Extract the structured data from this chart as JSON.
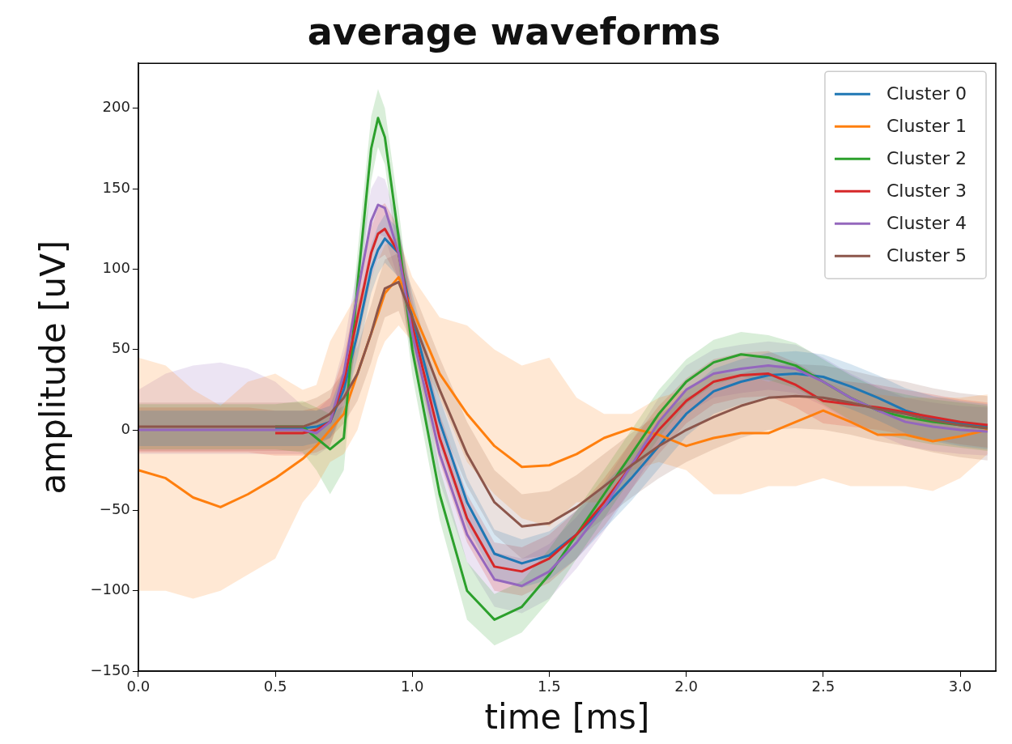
{
  "chart_data": {
    "type": "line",
    "title": "average waveforms",
    "xlabel": "time [ms]",
    "ylabel": "amplitude [uV]",
    "x": [
      0,
      0.1,
      0.2,
      0.3,
      0.4,
      0.5,
      0.6,
      0.65,
      0.7,
      0.75,
      0.8,
      0.85,
      0.875,
      0.9,
      0.95,
      1.0,
      1.1,
      1.2,
      1.3,
      1.4,
      1.5,
      1.6,
      1.7,
      1.8,
      1.9,
      2.0,
      2.1,
      2.2,
      2.3,
      2.4,
      2.5,
      2.6,
      2.7,
      2.8,
      2.9,
      3.0,
      3.1
    ],
    "xlim": [
      0,
      3.13
    ],
    "xticks": [
      {
        "value": 0,
        "label": "0.0"
      },
      {
        "value": 0.5,
        "label": "0.5"
      },
      {
        "value": 1,
        "label": "1.0"
      },
      {
        "value": 1.5,
        "label": "1.5"
      },
      {
        "value": 2,
        "label": "2.0"
      },
      {
        "value": 2.5,
        "label": "2.5"
      },
      {
        "value": 3,
        "label": "3.0"
      }
    ],
    "ylim": [
      -150,
      228
    ],
    "yticks": [
      {
        "value": -150,
        "label": "−150"
      },
      {
        "value": -100,
        "label": "−100"
      },
      {
        "value": -50,
        "label": "−50"
      },
      0,
      50,
      100,
      150,
      200
    ],
    "grid": false,
    "legend": "top right",
    "line_style": "solid",
    "series": [
      {
        "name": "Cluster 0",
        "color": "#1f77b4",
        "values": [
          null,
          null,
          null,
          null,
          null,
          1,
          1,
          2,
          5,
          25,
          60,
          100,
          112,
          119,
          110,
          70,
          5,
          -45,
          -77,
          -83,
          -78,
          -65,
          -48,
          -30,
          -10,
          10,
          24,
          30,
          34,
          35,
          33,
          27,
          20,
          12,
          7,
          4,
          2
        ],
        "lower": [
          -10,
          -10,
          -10,
          -10,
          -10,
          -10,
          -10,
          -8,
          -5,
          12,
          45,
          85,
          97,
          104,
          95,
          55,
          -10,
          -60,
          -92,
          -98,
          -93,
          -80,
          -62,
          -44,
          -24,
          -4,
          10,
          16,
          20,
          21,
          19,
          13,
          6,
          -2,
          -7,
          -10,
          -12
        ],
        "upper": [
          12,
          12,
          12,
          12,
          12,
          12,
          12,
          12,
          15,
          38,
          75,
          115,
          127,
          134,
          125,
          85,
          20,
          -30,
          -62,
          -68,
          -63,
          -50,
          -34,
          -16,
          4,
          24,
          38,
          44,
          48,
          49,
          47,
          41,
          34,
          26,
          21,
          18,
          16
        ]
      },
      {
        "name": "Cluster 1",
        "color": "#ff7f0e",
        "values": [
          -25,
          -30,
          -42,
          -48,
          -40,
          -30,
          -18,
          -10,
          0,
          10,
          35,
          60,
          72,
          85,
          95,
          75,
          35,
          10,
          -10,
          -23,
          -22,
          -15,
          -5,
          1,
          -3,
          -10,
          -5,
          -2,
          -2,
          5,
          12,
          5,
          -3,
          -3,
          -7,
          -4,
          0
        ],
        "lower": [
          -100,
          -100,
          -105,
          -100,
          -90,
          -80,
          -45,
          -35,
          -20,
          -15,
          0,
          30,
          45,
          55,
          65,
          55,
          20,
          -20,
          -40,
          -55,
          -60,
          -45,
          -45,
          -25,
          -20,
          -25,
          -40,
          -40,
          -35,
          -35,
          -30,
          -35,
          -35,
          -35,
          -38,
          -30,
          -15
        ],
        "upper": [
          45,
          40,
          25,
          15,
          30,
          35,
          25,
          28,
          55,
          70,
          85,
          95,
          105,
          115,
          120,
          95,
          70,
          65,
          50,
          40,
          45,
          20,
          10,
          10,
          20,
          25,
          35,
          35,
          30,
          35,
          30,
          25,
          22,
          20,
          20,
          20,
          22
        ]
      },
      {
        "name": "Cluster 2",
        "color": "#2ca02c",
        "values": [
          null,
          null,
          null,
          null,
          null,
          2,
          2,
          -5,
          -12,
          -5,
          90,
          175,
          194,
          182,
          120,
          50,
          -40,
          -100,
          -118,
          -110,
          -90,
          -65,
          -40,
          -15,
          10,
          30,
          42,
          47,
          45,
          40,
          30,
          20,
          12,
          8,
          5,
          3,
          1
        ],
        "lower": [
          -12,
          -12,
          -12,
          -12,
          -12,
          -12,
          -14,
          -25,
          -40,
          -25,
          70,
          155,
          176,
          165,
          102,
          34,
          -56,
          -118,
          -134,
          -126,
          -106,
          -80,
          -55,
          -30,
          -5,
          16,
          28,
          33,
          31,
          26,
          16,
          6,
          -2,
          -6,
          -9,
          -11,
          -13
        ],
        "upper": [
          16,
          16,
          16,
          16,
          16,
          16,
          18,
          14,
          10,
          15,
          110,
          195,
          212,
          200,
          138,
          66,
          -24,
          -82,
          -102,
          -94,
          -74,
          -50,
          -25,
          0,
          25,
          44,
          56,
          61,
          59,
          54,
          44,
          34,
          26,
          22,
          19,
          17,
          15
        ]
      },
      {
        "name": "Cluster 3",
        "color": "#d62728",
        "values": [
          null,
          null,
          null,
          null,
          null,
          -2,
          -2,
          0,
          5,
          30,
          70,
          110,
          122,
          125,
          110,
          65,
          -5,
          -55,
          -85,
          -88,
          -80,
          -65,
          -45,
          -22,
          0,
          18,
          30,
          34,
          35,
          28,
          18,
          16,
          14,
          11,
          8,
          5,
          3
        ],
        "lower": [
          -14,
          -14,
          -14,
          -14,
          -14,
          -16,
          -16,
          -14,
          -10,
          14,
          54,
          94,
          106,
          109,
          94,
          49,
          -20,
          -70,
          -100,
          -103,
          -95,
          -80,
          -60,
          -37,
          -15,
          4,
          16,
          20,
          21,
          14,
          4,
          2,
          0,
          -3,
          -6,
          -9,
          -11
        ],
        "upper": [
          14,
          14,
          14,
          14,
          14,
          12,
          12,
          14,
          20,
          46,
          86,
          126,
          138,
          141,
          126,
          81,
          10,
          -40,
          -70,
          -73,
          -65,
          -50,
          -30,
          -7,
          15,
          32,
          44,
          48,
          49,
          42,
          32,
          30,
          28,
          25,
          22,
          19,
          17
        ]
      },
      {
        "name": "Cluster 4",
        "color": "#9467bd",
        "values": [
          0,
          0,
          0,
          0,
          0,
          0,
          0,
          -2,
          5,
          35,
          85,
          130,
          140,
          138,
          110,
          60,
          -15,
          -65,
          -93,
          -97,
          -88,
          -70,
          -48,
          -22,
          5,
          25,
          35,
          38,
          40,
          38,
          30,
          20,
          12,
          5,
          2,
          0,
          -1
        ],
        "lower": [
          -15,
          -15,
          -15,
          -15,
          -15,
          -15,
          -15,
          -16,
          -10,
          18,
          68,
          112,
          122,
          120,
          93,
          44,
          -32,
          -82,
          -110,
          -114,
          -105,
          -86,
          -63,
          -37,
          -10,
          10,
          20,
          23,
          25,
          23,
          15,
          5,
          -3,
          -10,
          -13,
          -15,
          -16
        ],
        "upper": [
          25,
          35,
          40,
          42,
          38,
          30,
          15,
          12,
          20,
          52,
          102,
          150,
          158,
          156,
          127,
          76,
          2,
          -48,
          -76,
          -80,
          -71,
          -54,
          -33,
          -7,
          20,
          40,
          50,
          53,
          55,
          53,
          45,
          35,
          27,
          20,
          17,
          15,
          14
        ]
      },
      {
        "name": "Cluster 5",
        "color": "#8c564b",
        "values": [
          2,
          2,
          2,
          2,
          2,
          2,
          2,
          5,
          10,
          20,
          35,
          60,
          75,
          88,
          92,
          70,
          25,
          -15,
          -45,
          -60,
          -58,
          -48,
          -35,
          -22,
          -10,
          0,
          8,
          15,
          20,
          21,
          20,
          17,
          13,
          10,
          6,
          3,
          1
        ],
        "lower": [
          -13,
          -13,
          -13,
          -13,
          -13,
          -13,
          -13,
          -10,
          -5,
          4,
          18,
          42,
          57,
          70,
          74,
          52,
          5,
          -35,
          -65,
          -80,
          -78,
          -68,
          -55,
          -42,
          -30,
          -20,
          -12,
          -5,
          0,
          1,
          0,
          -3,
          -7,
          -10,
          -14,
          -17,
          -19
        ],
        "upper": [
          17,
          17,
          17,
          17,
          17,
          17,
          17,
          20,
          25,
          36,
          52,
          78,
          93,
          106,
          110,
          88,
          45,
          5,
          -25,
          -40,
          -38,
          -28,
          -15,
          -2,
          10,
          20,
          28,
          35,
          40,
          41,
          40,
          37,
          33,
          30,
          26,
          23,
          21
        ]
      }
    ]
  }
}
